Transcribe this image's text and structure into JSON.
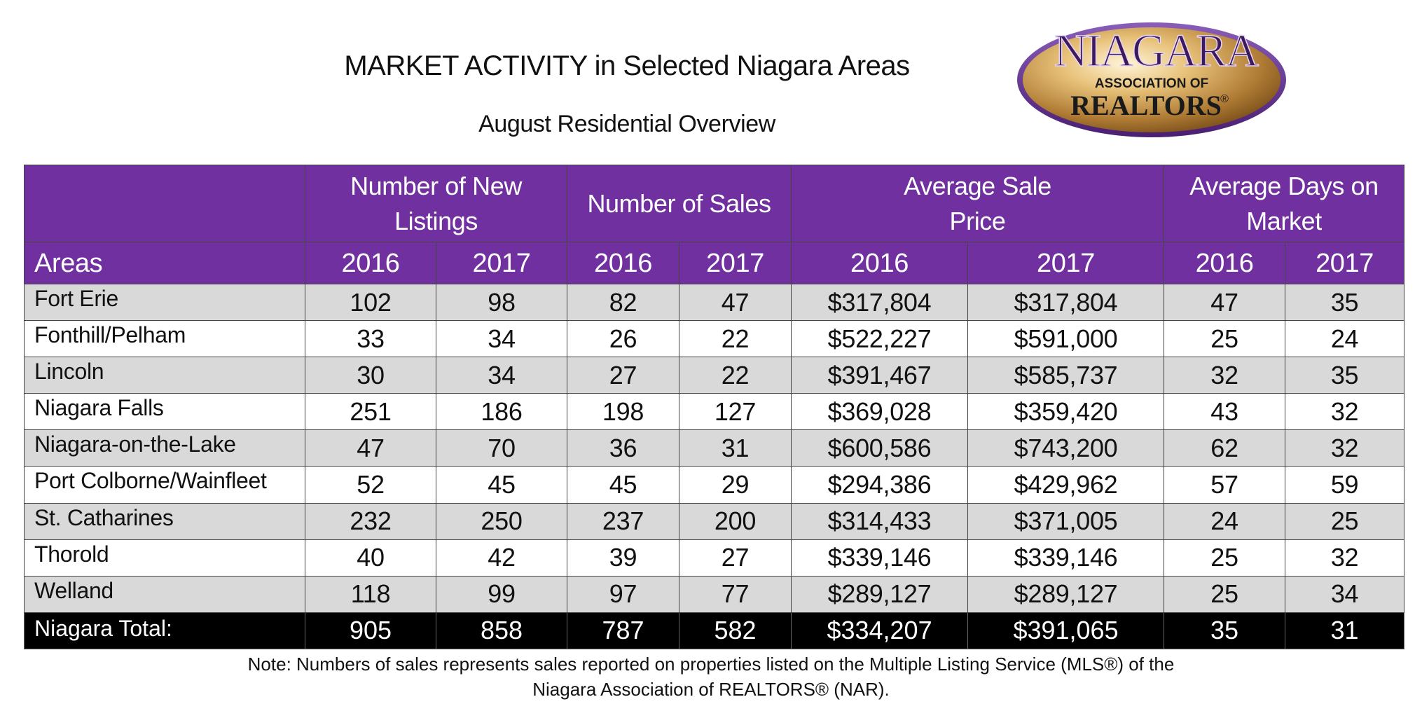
{
  "title": "MARKET ACTIVITY in Selected Niagara Areas",
  "subtitle": "August Residential Overview",
  "logo": {
    "line1": "NIAGARA",
    "line2": "ASSOCIATION OF",
    "line3": "REALTORS",
    "mark": "®",
    "colors": {
      "purple": "#5b2a86",
      "gold": "#c8963e",
      "goldDark": "#8a5a1c"
    }
  },
  "table": {
    "group_headers": [
      "Number of New Listings",
      "Number of Sales",
      "Average Sale Price",
      "Average Days on Market"
    ],
    "group_header_lines": [
      [
        "Number of New",
        "Listings"
      ],
      [
        "Number of Sales",
        ""
      ],
      [
        "Average Sale",
        "Price"
      ],
      [
        "Average Days on",
        "Market"
      ]
    ],
    "areas_label": "Areas",
    "years": [
      "2016",
      "2017"
    ],
    "rows": [
      {
        "area": "Fort Erie",
        "listings_2016": "102",
        "listings_2017": "98",
        "sales_2016": "82",
        "sales_2017": "47",
        "price_2016": "$317,804",
        "price_2017": "$317,804",
        "days_2016": "47",
        "days_2017": "35"
      },
      {
        "area": "Fonthill/Pelham",
        "listings_2016": "33",
        "listings_2017": "34",
        "sales_2016": "26",
        "sales_2017": "22",
        "price_2016": "$522,227",
        "price_2017": "$591,000",
        "days_2016": "25",
        "days_2017": "24"
      },
      {
        "area": "Lincoln",
        "listings_2016": "30",
        "listings_2017": "34",
        "sales_2016": "27",
        "sales_2017": "22",
        "price_2016": "$391,467",
        "price_2017": "$585,737",
        "days_2016": "32",
        "days_2017": "35"
      },
      {
        "area": "Niagara Falls",
        "listings_2016": "251",
        "listings_2017": "186",
        "sales_2016": "198",
        "sales_2017": "127",
        "price_2016": "$369,028",
        "price_2017": "$359,420",
        "days_2016": "43",
        "days_2017": "32"
      },
      {
        "area": "Niagara-on-the-Lake",
        "listings_2016": "47",
        "listings_2017": "70",
        "sales_2016": "36",
        "sales_2017": "31",
        "price_2016": "$600,586",
        "price_2017": "$743,200",
        "days_2016": "62",
        "days_2017": "32"
      },
      {
        "area": "Port Colborne/Wainfleet",
        "listings_2016": "52",
        "listings_2017": "45",
        "sales_2016": "45",
        "sales_2017": "29",
        "price_2016": "$294,386",
        "price_2017": "$429,962",
        "days_2016": "57",
        "days_2017": "59"
      },
      {
        "area": "St. Catharines",
        "listings_2016": "232",
        "listings_2017": "250",
        "sales_2016": "237",
        "sales_2017": "200",
        "price_2016": "$314,433",
        "price_2017": "$371,005",
        "days_2016": "24",
        "days_2017": "25"
      },
      {
        "area": "Thorold",
        "listings_2016": "40",
        "listings_2017": "42",
        "sales_2016": "39",
        "sales_2017": "27",
        "price_2016": "$339,146",
        "price_2017": "$339,146",
        "days_2016": "25",
        "days_2017": "32"
      },
      {
        "area": "Welland",
        "listings_2016": "118",
        "listings_2017": "99",
        "sales_2016": "97",
        "sales_2017": "77",
        "price_2016": "$289,127",
        "price_2017": "$289,127",
        "days_2016": "25",
        "days_2017": "34"
      }
    ],
    "total": {
      "area": "Niagara Total:",
      "listings_2016": "905",
      "listings_2017": "858",
      "sales_2016": "787",
      "sales_2017": "582",
      "price_2016": "$334,207",
      "price_2017": "$391,065",
      "days_2016": "35",
      "days_2017": "31"
    },
    "colors": {
      "header": "#7030a0",
      "row_grey": "#d9d9d9",
      "row_white": "#ffffff",
      "total": "#000000"
    }
  },
  "note": {
    "line1": "Note: Numbers of sales represents sales reported on properties listed on the Multiple Listing Service (MLS®) of the",
    "line2": "Niagara Association of REALTORS® (NAR)."
  }
}
